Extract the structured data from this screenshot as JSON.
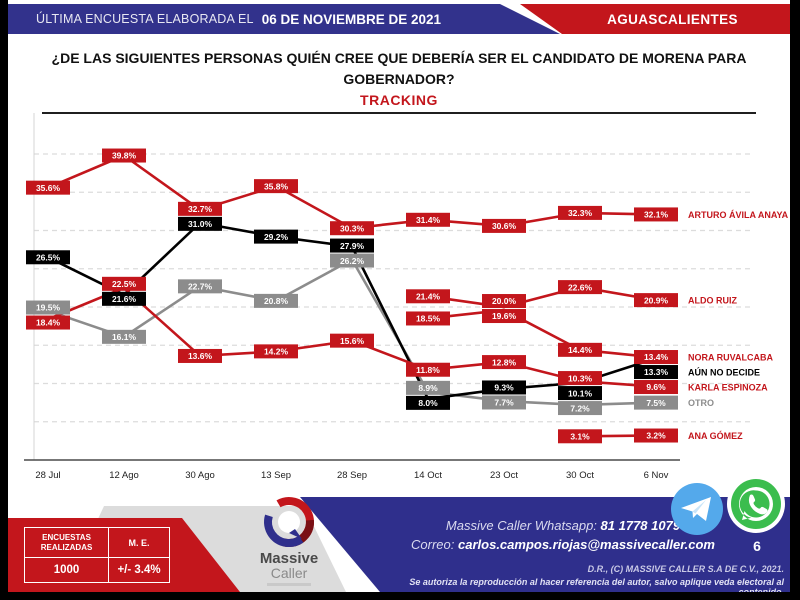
{
  "header": {
    "left_prefix": "ÚLTIMA ENCUESTA ELABORADA EL",
    "left_date": "06 DE NOVIEMBRE DE 2021",
    "right": "AGUASCALIENTES"
  },
  "title": {
    "question": "¿DE LAS SIGUIENTES PERSONAS QUIÉN CREE QUE DEBERÍA SER EL CANDIDATO DE MORENA PARA GOBERNADOR?",
    "subtitle": "TRACKING"
  },
  "chart_data": {
    "type": "line",
    "title": "TRACKING",
    "categories": [
      "28 Jul",
      "12 Ago",
      "30 Ago",
      "13 Sep",
      "28 Sep",
      "14 Oct",
      "23 Oct",
      "30 Oct",
      "6 Nov"
    ],
    "series": [
      {
        "name": "ARTURO ÁVILA ANAYA",
        "color": "#C3161C",
        "values": [
          35.6,
          39.8,
          32.7,
          35.8,
          30.3,
          31.4,
          30.6,
          32.3,
          32.1
        ]
      },
      {
        "name": "ALDO RUIZ",
        "color": "#C3161C",
        "values": [
          null,
          null,
          null,
          null,
          null,
          21.4,
          20.0,
          22.6,
          20.9
        ]
      },
      {
        "name": "NORA RUVALCABA",
        "color": "#C3161C",
        "values": [
          null,
          null,
          null,
          null,
          null,
          18.5,
          19.6,
          14.4,
          13.4
        ]
      },
      {
        "name": "AÚN NO DECIDE",
        "color": "#000000",
        "values": [
          26.5,
          21.6,
          31.0,
          29.2,
          27.9,
          8.0,
          9.3,
          10.1,
          13.3
        ]
      },
      {
        "name": "KARLA ESPINOZA",
        "color": "#C3161C",
        "values": [
          18.4,
          22.5,
          13.6,
          14.2,
          15.6,
          11.8,
          12.8,
          10.3,
          9.6
        ]
      },
      {
        "name": "OTRO",
        "color": "#8C8C8C",
        "values": [
          19.5,
          16.1,
          22.7,
          20.8,
          26.2,
          8.9,
          7.7,
          7.2,
          7.5
        ]
      },
      {
        "name": "ANA GÓMEZ",
        "color": "#C3161C",
        "values": [
          null,
          null,
          null,
          null,
          null,
          null,
          null,
          3.1,
          3.2
        ]
      }
    ],
    "value_label_format": "0.0%",
    "ylim": [
      0,
      45
    ],
    "grid": "dashed horizontal every 5%",
    "y_tick_labels_visible": false,
    "legend_position": "right-end-labels"
  },
  "footer": {
    "stats_table": {
      "col1_header": "ENCUESTAS REALIZADAS",
      "col2_header": "M. E.",
      "col1_value": "1000",
      "col2_value": "+/- 3.4%"
    },
    "logo": {
      "brand_line1": "Massive",
      "brand_line2": "Caller"
    },
    "contact": {
      "whatsapp_label": "Massive Caller Whatsapp:",
      "whatsapp_number": "81 1778 1079",
      "email_label": "Correo:",
      "email": "carlos.campos.riojas@massivecaller.com",
      "page_number": "6"
    },
    "legal": {
      "line1": "D.R., (C) MASSIVE CALLER S.A DE C.V., 2021.",
      "line2": "Se autoriza la reproducción al hacer referencia del autor, salvo aplique veda electoral al contenido."
    },
    "colors": {
      "accent_red": "#C3161C",
      "accent_blue": "#2F2F8C",
      "telegram_blue": "#54A9EB",
      "whatsapp_green": "#3BBD4E"
    }
  }
}
